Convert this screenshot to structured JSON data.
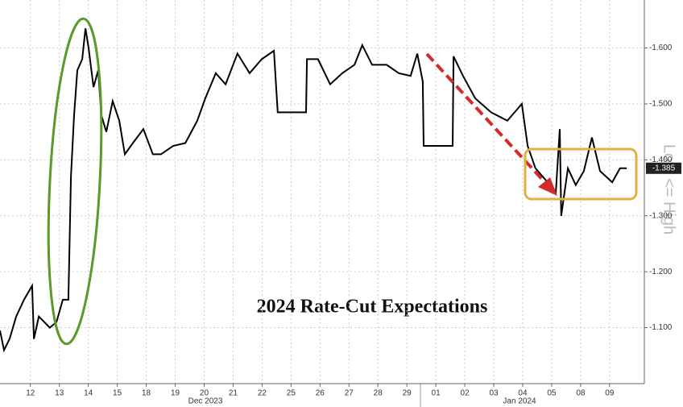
{
  "chart_data": {
    "type": "line",
    "title": "2024 Rate-Cut Expectations",
    "y_axis_label": "Low <= High",
    "months": [
      "Dec 2023",
      "Jan 2024"
    ],
    "series": [
      {
        "color": "#000000",
        "x": [
          -1.05,
          -0.91,
          -0.72,
          -0.49,
          -0.22,
          0.06,
          0.12,
          0.29,
          0.48,
          0.67,
          0.9,
          1.12,
          1.31,
          1.4,
          1.51,
          1.62,
          1.79,
          1.9,
          2.01,
          2.18,
          2.34,
          2.45,
          2.62,
          2.84,
          3.07,
          3.26,
          3.54,
          3.9,
          4.23,
          4.51,
          4.93,
          5.35,
          5.76,
          6.04,
          6.4,
          6.74,
          7.15,
          7.57,
          7.99,
          8.41,
          8.54,
          9.52,
          9.55,
          9.93,
          10.35,
          10.77,
          11.19,
          11.46,
          11.8,
          12.3,
          12.72,
          13.13,
          13.36,
          13.55,
          13.58,
          14.58,
          14.61,
          14.94,
          15.36,
          15.91,
          16.47,
          16.97,
          17.17,
          17.44,
          17.86,
          18.14,
          18.28,
          18.33,
          18.56,
          18.83,
          19.11,
          19.39,
          19.67,
          20.09,
          20.36,
          20.59
        ],
        "values": [
          -1.095,
          -1.06,
          -1.08,
          -1.12,
          -1.15,
          -1.175,
          -1.08,
          -1.12,
          -1.11,
          -1.1,
          -1.11,
          -1.15,
          -1.15,
          -1.37,
          -1.48,
          -1.56,
          -1.58,
          -1.635,
          -1.6,
          -1.53,
          -1.56,
          -1.48,
          -1.45,
          -1.505,
          -1.47,
          -1.41,
          -1.43,
          -1.455,
          -1.41,
          -1.41,
          -1.425,
          -1.43,
          -1.47,
          -1.51,
          -1.555,
          -1.535,
          -1.59,
          -1.555,
          -1.58,
          -1.595,
          -1.485,
          -1.485,
          -1.58,
          -1.58,
          -1.535,
          -1.555,
          -1.57,
          -1.605,
          -1.57,
          -1.57,
          -1.555,
          -1.55,
          -1.59,
          -1.54,
          -1.425,
          -1.425,
          -1.585,
          -1.55,
          -1.51,
          -1.485,
          -1.47,
          -1.5,
          -1.425,
          -1.385,
          -1.36,
          -1.34,
          -1.455,
          -1.3,
          -1.385,
          -1.355,
          -1.38,
          -1.44,
          -1.38,
          -1.36,
          -1.385,
          -1.385
        ]
      }
    ],
    "last_value": {
      "value": -1.385,
      "label": "-1.385"
    },
    "xlim": [
      -1.05,
      21.2
    ],
    "xticks": [
      {
        "value": 0,
        "label": "12"
      },
      {
        "value": 1,
        "label": "13"
      },
      {
        "value": 2,
        "label": "14"
      },
      {
        "value": 3,
        "label": "15"
      },
      {
        "value": 4,
        "label": "18"
      },
      {
        "value": 5,
        "label": "19"
      },
      {
        "value": 6,
        "label": "20"
      },
      {
        "value": 7,
        "label": "21"
      },
      {
        "value": 8,
        "label": "22"
      },
      {
        "value": 9,
        "label": "25"
      },
      {
        "value": 10,
        "label": "26"
      },
      {
        "value": 11,
        "label": "27"
      },
      {
        "value": 12,
        "label": "28"
      },
      {
        "value": 13,
        "label": "29"
      },
      {
        "value": 14,
        "label": "01"
      },
      {
        "value": 15,
        "label": "02"
      },
      {
        "value": 16,
        "label": "03"
      },
      {
        "value": 17,
        "label": "04"
      },
      {
        "value": 18,
        "label": "05"
      },
      {
        "value": 19,
        "label": "08"
      },
      {
        "value": 20,
        "label": "09"
      }
    ],
    "ylim": [
      -1.0,
      -1.68
    ],
    "yticks": [
      {
        "value": -1.1,
        "label": "-1.100"
      },
      {
        "value": -1.2,
        "label": "-1.200"
      },
      {
        "value": -1.3,
        "label": "-1.300"
      },
      {
        "value": -1.4,
        "label": "-1.400"
      },
      {
        "value": -1.5,
        "label": "-1.500"
      },
      {
        "value": -1.6,
        "label": "-1.600"
      }
    ],
    "grid": true
  }
}
